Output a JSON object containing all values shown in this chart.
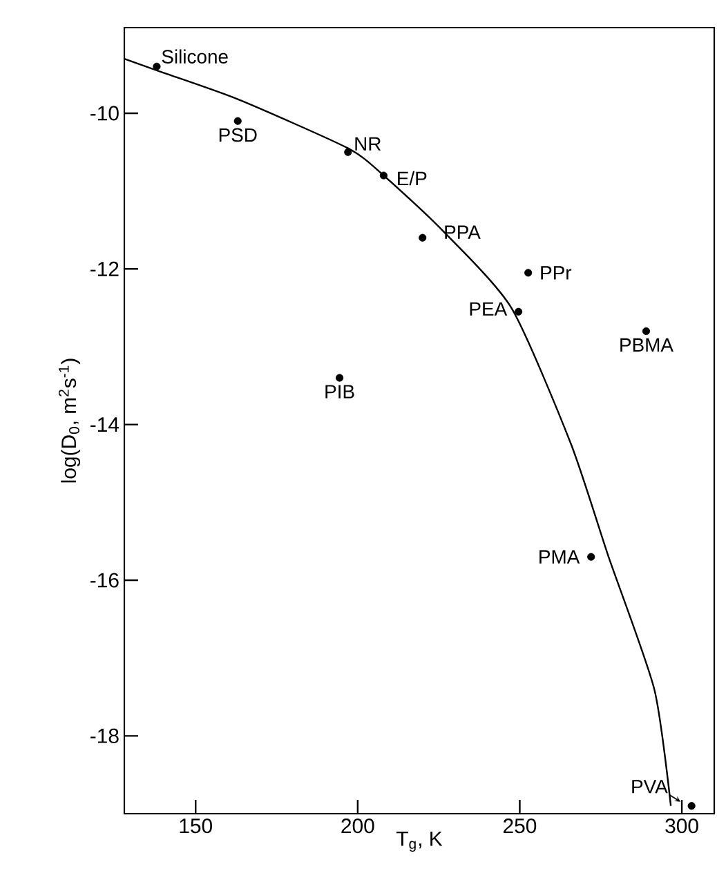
{
  "chart_data": {
    "type": "scatter",
    "xlabel": "T$_{g}$, K",
    "ylabel": "log(D$_{0}$, m$^{2}$s$^{-1}$)",
    "xlim": [
      128,
      310
    ],
    "ylim": [
      -19,
      -8.9
    ],
    "xticks": [
      150,
      200,
      250,
      300
    ],
    "yticks": [
      -10,
      -12,
      -14,
      -16,
      -18
    ],
    "grid": false,
    "series": [
      {
        "color": "#000000",
        "marker": "circle",
        "x": [
          138,
          163,
          197,
          208,
          220,
          252.6,
          249.6,
          289,
          194.4,
          272,
          303
        ],
        "values": [
          -9.4,
          -10.1,
          -10.5,
          -10.8,
          -11.6,
          -12.05,
          -12.55,
          -12.8,
          -13.4,
          -15.7,
          -18.9
        ]
      },
      {
        "type": "line",
        "color": "#000000",
        "marker": "none",
        "line_style": "solid",
        "x": [
          128,
          138,
          163,
          197,
          208,
          226,
          247.4,
          265.8,
          277.4,
          291.5,
          296.6
        ],
        "values": [
          -9.3,
          -9.45,
          -9.82,
          -10.45,
          -10.8,
          -11.5,
          -12.5,
          -14.25,
          -15.7,
          -17.4,
          -18.9
        ]
      }
    ],
    "annotations": [
      {
        "text": "Silicone",
        "x": 138,
        "y": -9.4
      },
      {
        "text": "PSD",
        "x": 163,
        "y": -10.1
      },
      {
        "text": "NR",
        "x": 197,
        "y": -10.5
      },
      {
        "text": "E/P",
        "x": 208,
        "y": -10.8
      },
      {
        "text": "PPA",
        "x": 220,
        "y": -11.6
      },
      {
        "text": "PPr",
        "x": 252.6,
        "y": -12.05
      },
      {
        "text": "PEA",
        "x": 249.6,
        "y": -12.55
      },
      {
        "text": "PBMA",
        "x": 289,
        "y": -12.8
      },
      {
        "text": "PIB",
        "x": 194.4,
        "y": -13.4
      },
      {
        "text": "PMA",
        "x": 272,
        "y": -15.7
      },
      {
        "text": "PVA",
        "x": 303,
        "y": -18.9
      }
    ]
  }
}
